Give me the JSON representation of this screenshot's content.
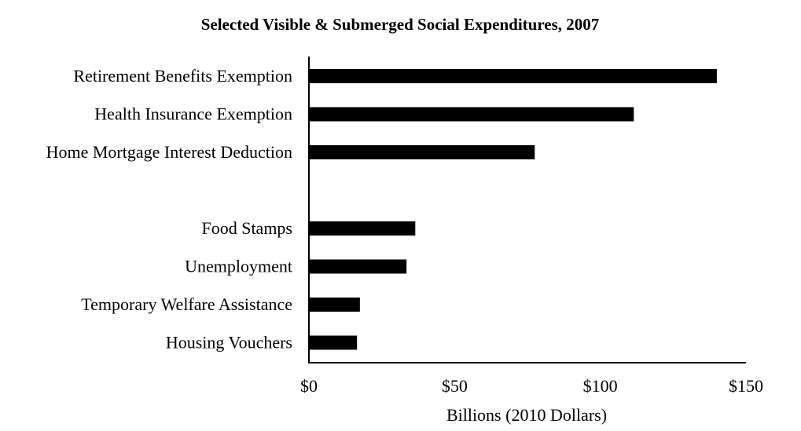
{
  "chart_data": {
    "type": "bar",
    "orientation": "horizontal",
    "title": "Selected Visible & Submerged Social Expenditures, 2007",
    "xlabel": "Billions (2010 Dollars)",
    "ylabel": "",
    "categories": [
      "Retirement Benefits Exemption",
      "Health Insurance Exemption",
      "Home Mortgage Interest Deduction",
      "",
      "Food Stamps",
      "Unemployment",
      "Temporary Welfare Assistance",
      "Housing Vouchers"
    ],
    "values": [
      140,
      111.5,
      77.5,
      null,
      36.5,
      33.5,
      17.5,
      16.5
    ],
    "xlim": [
      0,
      150
    ],
    "x_ticks": [
      0,
      50,
      100,
      150
    ],
    "x_tick_labels": [
      "$0",
      "$50",
      "$100",
      "$150"
    ],
    "bar_color": "#000000",
    "grid": false,
    "legend": "none"
  }
}
